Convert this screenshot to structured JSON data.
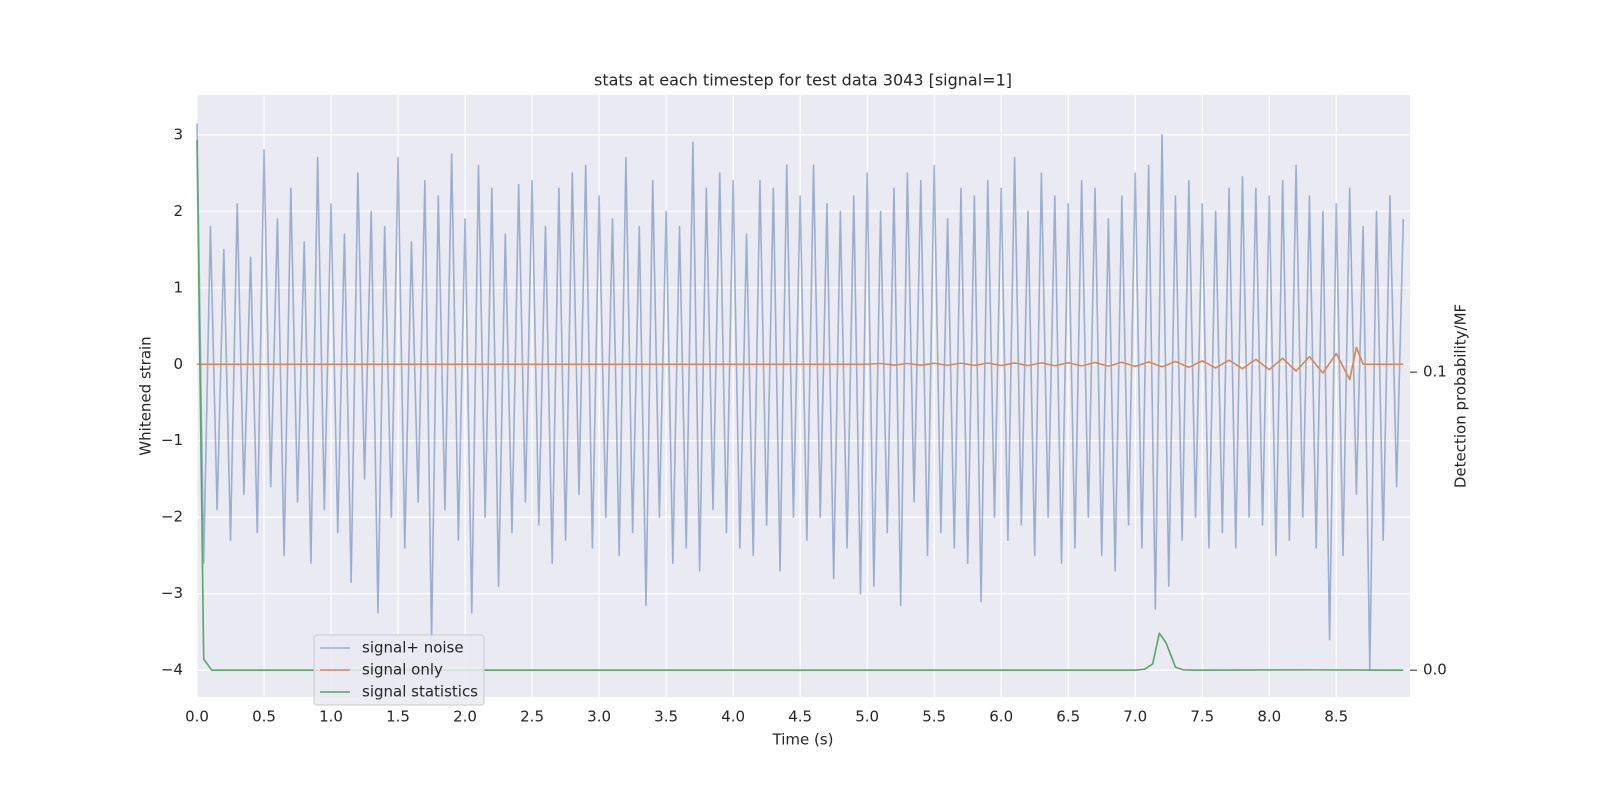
{
  "chart_data": {
    "type": "line",
    "title": "stats at each timestep for test data 3043 [signal=1]",
    "x_label": "Time (s)",
    "y_label": "Whitened strain",
    "y2_label": "Detection probability/MF",
    "xlim": [
      0,
      9.05
    ],
    "ylim": [
      -4.35,
      3.52
    ],
    "y2lim": [
      -0.009,
      0.193
    ],
    "xticks": [
      {
        "value": 0,
        "label": "0.0"
      },
      0.5,
      {
        "value": 1,
        "label": "1.0"
      },
      1.5,
      {
        "value": 2,
        "label": "2.0"
      },
      2.5,
      {
        "value": 3,
        "label": "3.0"
      },
      3.5,
      {
        "value": 4,
        "label": "4.0"
      },
      4.5,
      {
        "value": 5,
        "label": "5.0"
      },
      5.5,
      {
        "value": 6,
        "label": "6.0"
      },
      6.5,
      {
        "value": 7,
        "label": "7.0"
      },
      7.5,
      {
        "value": 8,
        "label": "8.0"
      },
      8.5
    ],
    "yticks": [
      {
        "value": -4,
        "label": "−4"
      },
      {
        "value": -3,
        "label": "−3"
      },
      {
        "value": -2,
        "label": "−2"
      },
      {
        "value": -1,
        "label": "−1"
      },
      0,
      1,
      2,
      3
    ],
    "y2ticks": [
      {
        "value": 0,
        "label": "0.0"
      },
      0.1
    ],
    "grid": true,
    "legend": "lower left",
    "series": [
      {
        "name": "signal+ noise",
        "color": "#4c72b0",
        "opacity": 0.5,
        "x": [
          0,
          0.05,
          0.1,
          0.15,
          0.2,
          0.25,
          0.3,
          0.35,
          0.4,
          0.45,
          0.5,
          0.55,
          0.6,
          0.65,
          0.7,
          0.75,
          0.8,
          0.85,
          0.9,
          0.95,
          1,
          1.05,
          1.1,
          1.15,
          1.2,
          1.25,
          1.3,
          1.35,
          1.4,
          1.45,
          1.5,
          1.55,
          1.6,
          1.65,
          1.7,
          1.75,
          1.8,
          1.85,
          1.9,
          1.95,
          2,
          2.05,
          2.1,
          2.15,
          2.2,
          2.25,
          2.3,
          2.35,
          2.4,
          2.45,
          2.5,
          2.55,
          2.6,
          2.65,
          2.7,
          2.75,
          2.8,
          2.85,
          2.9,
          2.95,
          3,
          3.05,
          3.1,
          3.15,
          3.2,
          3.25,
          3.3,
          3.35,
          3.4,
          3.45,
          3.5,
          3.55,
          3.6,
          3.65,
          3.7,
          3.75,
          3.8,
          3.85,
          3.9,
          3.95,
          4,
          4.05,
          4.1,
          4.15,
          4.2,
          4.25,
          4.3,
          4.35,
          4.4,
          4.45,
          4.5,
          4.55,
          4.6,
          4.65,
          4.7,
          4.75,
          4.8,
          4.85,
          4.9,
          4.95,
          5,
          5.05,
          5.1,
          5.15,
          5.2,
          5.25,
          5.3,
          5.35,
          5.4,
          5.45,
          5.5,
          5.55,
          5.6,
          5.65,
          5.7,
          5.75,
          5.8,
          5.85,
          5.9,
          5.95,
          6,
          6.05,
          6.1,
          6.15,
          6.2,
          6.25,
          6.3,
          6.35,
          6.4,
          6.45,
          6.5,
          6.55,
          6.6,
          6.65,
          6.7,
          6.75,
          6.8,
          6.85,
          6.9,
          6.95,
          7,
          7.05,
          7.1,
          7.15,
          7.2,
          7.25,
          7.3,
          7.35,
          7.4,
          7.45,
          7.5,
          7.55,
          7.6,
          7.65,
          7.7,
          7.75,
          7.8,
          7.85,
          7.9,
          7.95,
          8,
          8.05,
          8.1,
          8.15,
          8.2,
          8.25,
          8.3,
          8.35,
          8.4,
          8.45,
          8.5,
          8.55,
          8.6,
          8.65,
          8.7,
          8.75,
          8.8,
          8.85,
          8.9,
          8.95,
          9
        ],
        "values": [
          3.15,
          -2.6,
          1.8,
          -1.9,
          1.5,
          -2.3,
          2.1,
          -1.7,
          1.4,
          -2.2,
          2.8,
          -1.6,
          1.9,
          -2.5,
          2.3,
          -1.8,
          1.6,
          -2.6,
          2.7,
          -1.9,
          2.1,
          -2.2,
          1.7,
          -2.85,
          2.5,
          -1.5,
          2.0,
          -3.25,
          1.8,
          -2.0,
          2.7,
          -2.4,
          1.6,
          -1.8,
          2.4,
          -3.6,
          2.2,
          -1.9,
          2.75,
          -2.3,
          1.9,
          -3.25,
          2.6,
          -2.0,
          2.3,
          -2.9,
          1.7,
          -2.2,
          2.35,
          -1.8,
          2.4,
          -2.1,
          1.8,
          -2.6,
          2.3,
          -2.3,
          2.5,
          -1.7,
          2.6,
          -2.4,
          2.2,
          -2.0,
          1.9,
          -2.5,
          2.7,
          -2.2,
          1.8,
          -3.15,
          2.4,
          -2.0,
          2.0,
          -2.6,
          1.8,
          -2.4,
          2.9,
          -2.7,
          2.3,
          -1.9,
          2.5,
          -2.2,
          2.4,
          -2.4,
          1.7,
          -2.5,
          2.4,
          -2.1,
          2.3,
          -2.7,
          2.6,
          -2.0,
          2.2,
          -2.3,
          2.6,
          -2.0,
          2.1,
          -2.8,
          2.0,
          -2.4,
          2.2,
          -3.0,
          2.5,
          -2.9,
          2.0,
          -2.2,
          2.3,
          -3.15,
          2.5,
          -1.8,
          2.4,
          -2.5,
          2.6,
          -2.2,
          1.9,
          -2.4,
          2.3,
          -2.6,
          2.2,
          -3.1,
          2.4,
          -2.0,
          2.3,
          -2.3,
          2.7,
          -2.1,
          2.0,
          -2.5,
          2.5,
          -2.0,
          2.2,
          -2.6,
          2.1,
          -2.4,
          2.4,
          -2.0,
          2.3,
          -2.5,
          1.9,
          -2.7,
          2.2,
          -2.1,
          2.5,
          -2.4,
          2.6,
          -3.2,
          3.0,
          -2.9,
          2.2,
          -2.3,
          2.4,
          -2.0,
          2.1,
          -2.4,
          2.0,
          -2.2,
          2.3,
          -2.4,
          2.45,
          -2.0,
          2.3,
          -2.1,
          2.2,
          -2.5,
          2.4,
          -2.3,
          2.6,
          -2.0,
          2.2,
          -2.4,
          2.0,
          -3.6,
          2.1,
          -2.5,
          2.3,
          -1.7,
          1.8,
          -4.0,
          2.0,
          -2.3,
          2.2,
          -1.6,
          1.9
        ]
      },
      {
        "name": "signal only",
        "color": "#dd8452",
        "x": [
          0,
          1,
          2,
          3,
          4,
          5,
          5.1,
          5.2,
          5.3,
          5.4,
          5.5,
          5.6,
          5.7,
          5.8,
          5.9,
          6,
          6.1,
          6.2,
          6.3,
          6.4,
          6.5,
          6.6,
          6.7,
          6.8,
          6.9,
          7,
          7.1,
          7.2,
          7.3,
          7.4,
          7.5,
          7.6,
          7.7,
          7.8,
          7.9,
          8,
          8.1,
          8.2,
          8.3,
          8.4,
          8.5,
          8.6,
          8.65,
          8.7,
          9
        ],
        "values": [
          0,
          0,
          0,
          0,
          0,
          0,
          0.01,
          -0.01,
          0.01,
          -0.012,
          0.012,
          -0.013,
          0.013,
          -0.014,
          0.015,
          -0.015,
          0.016,
          -0.017,
          0.018,
          -0.019,
          0.02,
          -0.021,
          0.022,
          -0.024,
          0.026,
          -0.028,
          0.03,
          -0.033,
          0.036,
          -0.04,
          0.044,
          -0.048,
          0.053,
          -0.058,
          0.064,
          -0.07,
          0.078,
          -0.088,
          0.1,
          -0.115,
          0.14,
          -0.2,
          0.22,
          0,
          0
        ]
      },
      {
        "name": "signal statistics",
        "color": "#55a868",
        "axis": "y2",
        "x": [
          0,
          0.05,
          0.11,
          1,
          2,
          3,
          4,
          5,
          6,
          7,
          7.07,
          7.13,
          7.18,
          7.23,
          7.3,
          7.36,
          7.45,
          8.3,
          9
        ],
        "values": [
          0.178,
          0.0037,
          0,
          0,
          0,
          0,
          0,
          0,
          0,
          0,
          0.0003,
          0.0021,
          0.0124,
          0.0092,
          0.001,
          0.0001,
          0,
          0.0001,
          0
        ]
      }
    ]
  }
}
